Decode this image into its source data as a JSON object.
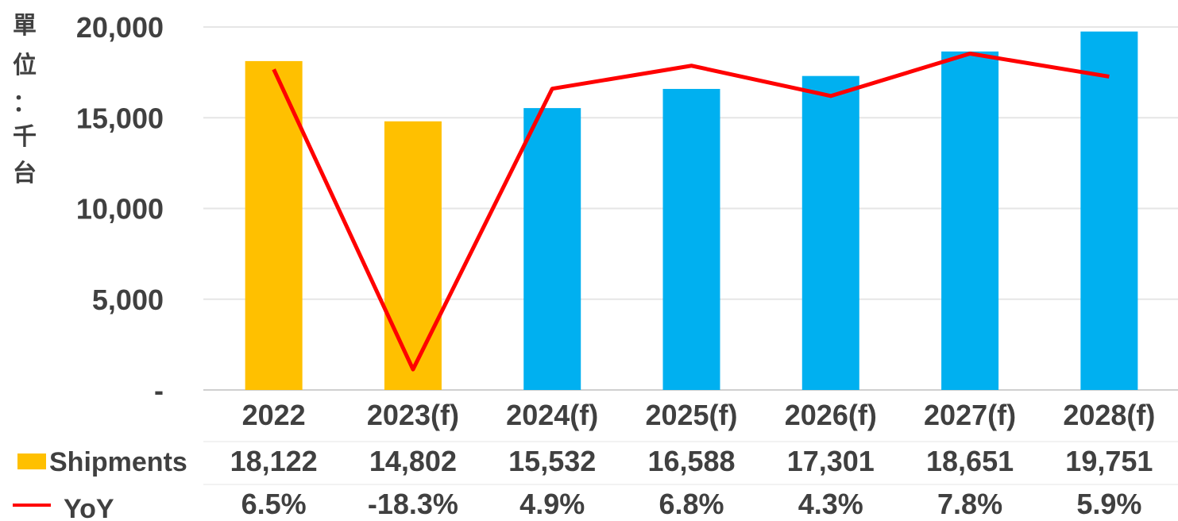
{
  "chart_data": {
    "type": "bar",
    "ylabel": "單位：千台",
    "ylim": [
      0,
      20000
    ],
    "yticks": [
      "-",
      "5,000",
      "10,000",
      "15,000",
      "20,000"
    ],
    "ytick_values": [
      0,
      5000,
      10000,
      15000,
      20000
    ],
    "categories": [
      "2022",
      "2023(f)",
      "2024(f)",
      "2025(f)",
      "2026(f)",
      "2027(f)",
      "2028(f)"
    ],
    "series": [
      {
        "name": "Shipments",
        "kind": "bar",
        "values": [
          18122,
          14802,
          15532,
          16588,
          17301,
          18651,
          19751
        ],
        "labels": [
          "18,122",
          "14,802",
          "15,532",
          "16,588",
          "17,301",
          "18,651",
          "19,751"
        ],
        "colors": [
          "#FFC000",
          "#FFC000",
          "#00B0F0",
          "#00B0F0",
          "#00B0F0",
          "#00B0F0",
          "#00B0F0"
        ]
      },
      {
        "name": "YoY",
        "kind": "line",
        "values": [
          6.5,
          -18.3,
          4.9,
          6.8,
          4.3,
          7.8,
          5.9
        ],
        "labels": [
          "6.5%",
          "-18.3%",
          "4.9%",
          "6.8%",
          "4.3%",
          "7.8%",
          "5.9%"
        ],
        "color": "#FF0000"
      }
    ],
    "grid": true,
    "legend": "data-table-left"
  }
}
